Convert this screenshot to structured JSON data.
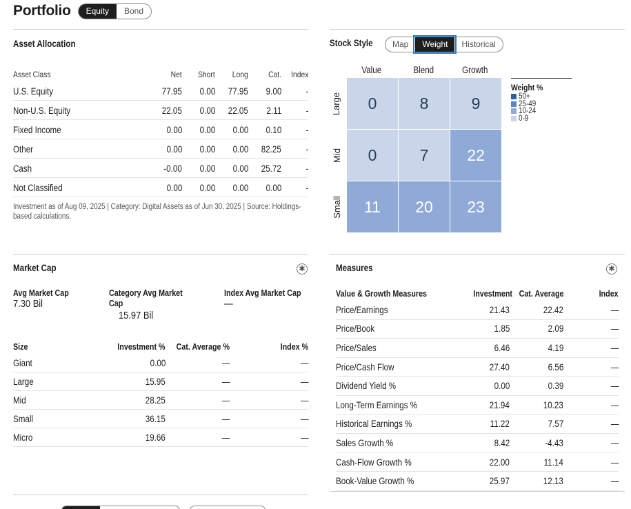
{
  "header": {
    "title": "Portfolio",
    "tabs": [
      {
        "label": "Equity",
        "active": true
      },
      {
        "label": "Bond",
        "active": false
      }
    ]
  },
  "asset_allocation": {
    "title": "Asset Allocation",
    "columns": [
      "Asset Class",
      "Net",
      "Short",
      "Long",
      "Cat.",
      "Index"
    ],
    "rows": [
      [
        "U.S. Equity",
        "77.95",
        "0.00",
        "77.95",
        "9.00",
        "-"
      ],
      [
        "Non-U.S. Equity",
        "22.05",
        "0.00",
        "22.05",
        "2.11",
        "-"
      ],
      [
        "Fixed Income",
        "0.00",
        "0.00",
        "0.00",
        "0.10",
        "-"
      ],
      [
        "Other",
        "0.00",
        "0.00",
        "0.00",
        "82.25",
        "-"
      ],
      [
        "Cash",
        "-0.00",
        "0.00",
        "0.00",
        "25.72",
        "-"
      ],
      [
        "Not Classified",
        "0.00",
        "0.00",
        "0.00",
        "0.00",
        "-"
      ]
    ],
    "footnote": "Investment as of Aug 09, 2025 | Category: Digital Assets as of Jun 30, 2025 | Source: Holdings-based calculations."
  },
  "stock_style": {
    "title": "Stock Style",
    "tabs": [
      {
        "label": "Map",
        "active": false
      },
      {
        "label": "Weight",
        "active": true
      },
      {
        "label": "Historical",
        "active": false
      }
    ],
    "columns": [
      "Value",
      "Blend",
      "Growth"
    ],
    "rows": [
      "Large",
      "Mid",
      "Small"
    ],
    "grid": [
      [
        0,
        8,
        9
      ],
      [
        0,
        7,
        22
      ],
      [
        11,
        20,
        23
      ]
    ],
    "legend": {
      "title": "Weight %",
      "items": [
        {
          "label": "50+",
          "color": "#2d5fa8"
        },
        {
          "label": "25-49",
          "color": "#5b84c4"
        },
        {
          "label": "10-24",
          "color": "#8faad6"
        },
        {
          "label": "0-9",
          "color": "#c9d6ea"
        }
      ]
    }
  },
  "market_cap": {
    "title": "Market Cap",
    "avg": {
      "label": "Avg Market Cap",
      "value": "7.30 Bil"
    },
    "cat_avg": {
      "label": "Category Avg Market Cap",
      "value": "15.97 Bil"
    },
    "index_avg": {
      "label": "Index Avg Market Cap",
      "value": "—"
    },
    "columns": [
      "Size",
      "Investment %",
      "Cat. Average %",
      "Index %"
    ],
    "rows": [
      [
        "Giant",
        "0.00",
        "—",
        "—"
      ],
      [
        "Large",
        "15.95",
        "—",
        "—"
      ],
      [
        "Mid",
        "28.25",
        "—",
        "—"
      ],
      [
        "Small",
        "36.15",
        "—",
        "—"
      ],
      [
        "Micro",
        "19.66",
        "—",
        "—"
      ]
    ],
    "info_icon": "asterisk-circle-icon"
  },
  "measures": {
    "title": "Measures",
    "columns": [
      "Value & Growth Measures",
      "Investment",
      "Cat. Average",
      "Index"
    ],
    "rows": [
      [
        "Price/Earnings",
        "21.43",
        "22.42",
        "—"
      ],
      [
        "Price/Book",
        "1.85",
        "2.09",
        "—"
      ],
      [
        "Price/Sales",
        "6.46",
        "4.19",
        "—"
      ],
      [
        "Price/Cash Flow",
        "27.40",
        "6.56",
        "—"
      ],
      [
        "Dividend Yield %",
        "0.00",
        "0.39",
        "—"
      ],
      [
        "Long-Term Earnings %",
        "21.94",
        "10.23",
        "—"
      ],
      [
        "Historical Earnings %",
        "11.22",
        "7.57",
        "—"
      ],
      [
        "Sales Growth %",
        "8.42",
        "-4.43",
        "—"
      ],
      [
        "Cash-Flow Growth %",
        "22.00",
        "11.14",
        "—"
      ],
      [
        "Book-Value Growth %",
        "25.97",
        "12.13",
        "—"
      ]
    ],
    "info_icon": "asterisk-circle-icon"
  }
}
